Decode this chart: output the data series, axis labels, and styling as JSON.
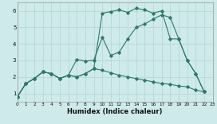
{
  "xlabel": "Humidex (Indice chaleur)",
  "background_color": "#ceeaea",
  "grid_color": "#b8d8d8",
  "line_color": "#2d7a6a",
  "xlim": [
    0,
    23
  ],
  "ylim": [
    0.5,
    6.5
  ],
  "xticks": [
    0,
    1,
    2,
    3,
    4,
    5,
    6,
    7,
    8,
    9,
    10,
    11,
    12,
    13,
    14,
    15,
    16,
    17,
    18,
    19,
    20,
    21,
    22,
    23
  ],
  "yticks": [
    1,
    2,
    3,
    4,
    5,
    6
  ],
  "line1_x": [
    0,
    1,
    2,
    3,
    4,
    5,
    6,
    7,
    8,
    9,
    10,
    11,
    12,
    13,
    14,
    15,
    16,
    17,
    18,
    19,
    20,
    21,
    22
  ],
  "line1_y": [
    0.8,
    1.6,
    1.9,
    2.3,
    2.2,
    1.9,
    2.1,
    2.0,
    2.2,
    2.5,
    5.85,
    5.95,
    6.05,
    5.9,
    6.15,
    6.05,
    5.85,
    6.0,
    4.3,
    4.3,
    3.0,
    2.2,
    1.1
  ],
  "line2_x": [
    0,
    1,
    2,
    3,
    4,
    5,
    6,
    7,
    8,
    9,
    10,
    11,
    12,
    13,
    14,
    15,
    16,
    17,
    18,
    19,
    20,
    21,
    22
  ],
  "line2_y": [
    0.8,
    1.6,
    1.9,
    2.3,
    2.2,
    1.9,
    2.1,
    3.05,
    2.95,
    3.0,
    4.4,
    3.3,
    3.5,
    4.3,
    5.0,
    5.2,
    5.5,
    5.75,
    5.6,
    4.3,
    3.0,
    2.2,
    1.1
  ],
  "line3_x": [
    0,
    1,
    2,
    3,
    4,
    5,
    6,
    7,
    8,
    9,
    10,
    11,
    12,
    13,
    14,
    15,
    16,
    17,
    18,
    19,
    20,
    21,
    22
  ],
  "line3_y": [
    0.8,
    1.6,
    1.9,
    2.3,
    2.2,
    1.9,
    2.1,
    2.0,
    2.2,
    2.5,
    2.4,
    2.25,
    2.1,
    2.0,
    1.9,
    1.8,
    1.7,
    1.6,
    1.55,
    1.45,
    1.4,
    1.2,
    1.1
  ]
}
